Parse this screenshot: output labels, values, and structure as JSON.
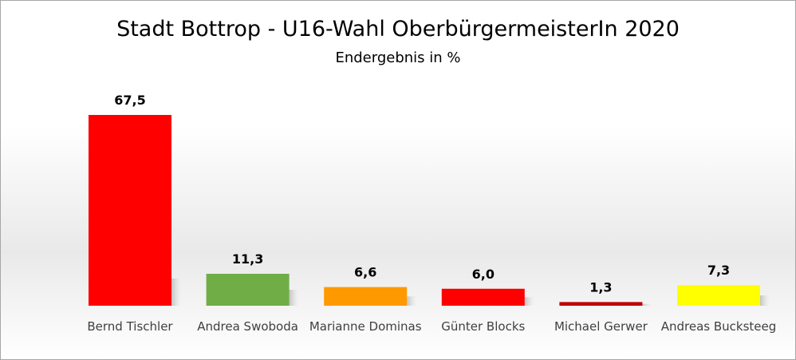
{
  "chart_data": {
    "type": "bar",
    "title": "Stadt Bottrop - U16-Wahl OberbürgermeisterIn 2020",
    "subtitle": "Endergebnis in %",
    "categories": [
      "Bernd Tischler",
      "Andrea Swoboda",
      "Marianne Dominas",
      "Günter Blocks",
      "Michael Gerwer",
      "Andreas Bucksteeg"
    ],
    "values": [
      67.5,
      11.3,
      6.6,
      6.0,
      1.3,
      7.3
    ],
    "value_labels": [
      "67,5",
      "11,3",
      "6,6",
      "6,0",
      "1,3",
      "7,3"
    ],
    "colors": [
      "#ff0000",
      "#70ad47",
      "#ff9900",
      "#ff0000",
      "#c00000",
      "#ffff00"
    ],
    "ylim": [
      0,
      67.5
    ],
    "grid": false,
    "legend": "none",
    "xlabel": "",
    "ylabel": ""
  }
}
